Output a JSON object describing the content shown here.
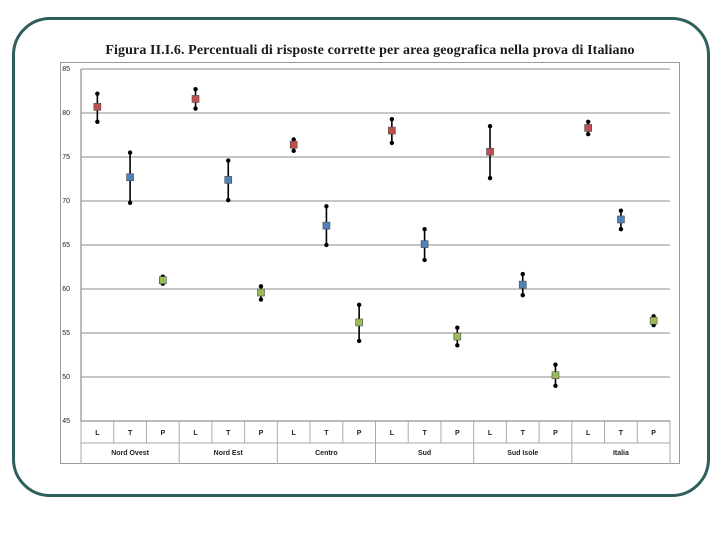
{
  "chart_data": {
    "type": "scatter",
    "title": "Figura II.I.6. Percentuali di risposte corrette per area geografica nella prova di Italiano",
    "ylim": [
      45,
      85
    ],
    "yticks": [
      45,
      50,
      55,
      60,
      65,
      70,
      75,
      80,
      85
    ],
    "grid": true,
    "groups": [
      "Nord Ovest",
      "Nord Est",
      "Centro",
      "Sud",
      "Sud Isole",
      "Italia"
    ],
    "subcategories": [
      "L",
      "T",
      "P"
    ],
    "colors": {
      "L": "#c0504d",
      "T": "#4f81bd",
      "P": "#9bbb59",
      "whisker": "#000000"
    },
    "points": [
      {
        "group": "Nord Ovest",
        "sub": "L",
        "value": 80.7,
        "low": 79.0,
        "high": 82.2
      },
      {
        "group": "Nord Ovest",
        "sub": "T",
        "value": 72.7,
        "low": 69.8,
        "high": 75.5
      },
      {
        "group": "Nord Ovest",
        "sub": "P",
        "value": 61.0,
        "low": 60.6,
        "high": 61.4
      },
      {
        "group": "Nord Est",
        "sub": "L",
        "value": 81.6,
        "low": 80.5,
        "high": 82.7
      },
      {
        "group": "Nord Est",
        "sub": "T",
        "value": 72.4,
        "low": 70.1,
        "high": 74.6
      },
      {
        "group": "Nord Est",
        "sub": "P",
        "value": 59.6,
        "low": 58.8,
        "high": 60.3
      },
      {
        "group": "Centro",
        "sub": "L",
        "value": 76.4,
        "low": 75.7,
        "high": 77.0
      },
      {
        "group": "Centro",
        "sub": "T",
        "value": 67.2,
        "low": 65.0,
        "high": 69.4
      },
      {
        "group": "Centro",
        "sub": "P",
        "value": 56.2,
        "low": 54.1,
        "high": 58.2
      },
      {
        "group": "Sud",
        "sub": "L",
        "value": 78.0,
        "low": 76.6,
        "high": 79.3
      },
      {
        "group": "Sud",
        "sub": "T",
        "value": 65.1,
        "low": 63.3,
        "high": 66.8
      },
      {
        "group": "Sud",
        "sub": "P",
        "value": 54.6,
        "low": 53.6,
        "high": 55.6
      },
      {
        "group": "Sud Isole",
        "sub": "L",
        "value": 75.6,
        "low": 72.6,
        "high": 78.5
      },
      {
        "group": "Sud Isole",
        "sub": "T",
        "value": 60.5,
        "low": 59.3,
        "high": 61.7
      },
      {
        "group": "Sud Isole",
        "sub": "P",
        "value": 50.2,
        "low": 49.0,
        "high": 51.4
      },
      {
        "group": "Italia",
        "sub": "L",
        "value": 78.3,
        "low": 77.6,
        "high": 79.0
      },
      {
        "group": "Italia",
        "sub": "T",
        "value": 67.9,
        "low": 66.8,
        "high": 68.9
      },
      {
        "group": "Italia",
        "sub": "P",
        "value": 56.4,
        "low": 55.9,
        "high": 56.9
      }
    ]
  }
}
